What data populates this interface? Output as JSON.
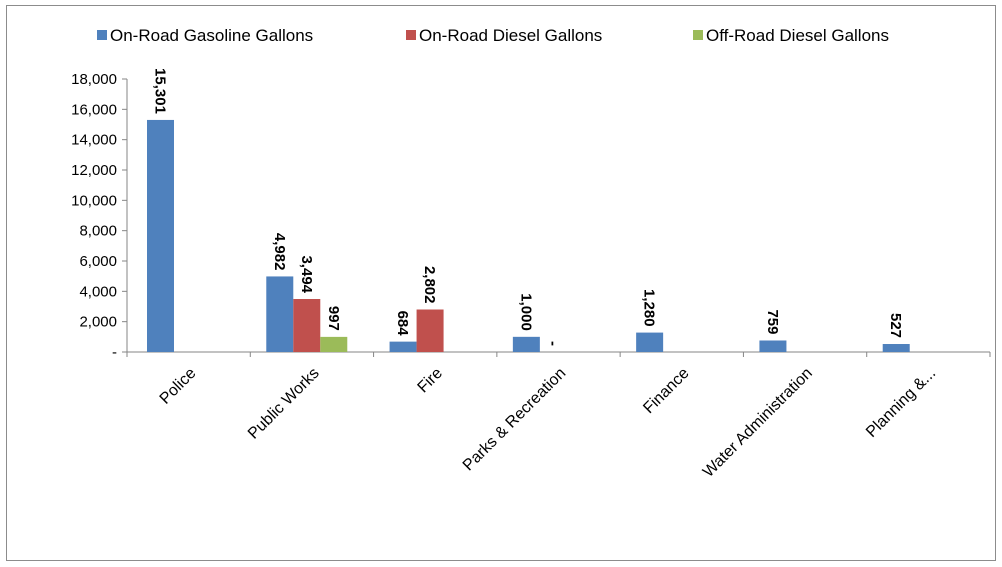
{
  "chart_data": {
    "type": "bar",
    "categories": [
      "Police",
      "Public Works",
      "Fire",
      "Parks & Recreation",
      "Finance",
      "Water Administration",
      "Planning &..."
    ],
    "series": [
      {
        "name": "On-Road Gasoline Gallons",
        "color": "#4f81bd",
        "values": [
          15301,
          4982,
          684,
          1000,
          1280,
          759,
          527
        ],
        "labels": [
          "15,301",
          "4,982",
          "684",
          "1,000",
          "1,280",
          "759",
          "527"
        ]
      },
      {
        "name": "On-Road Diesel Gallons",
        "color": "#c0504d",
        "values": [
          0,
          3494,
          2802,
          0,
          0,
          0,
          0
        ],
        "labels": [
          "",
          "3,494",
          "2,802",
          "-",
          "",
          "",
          ""
        ]
      },
      {
        "name": "Off-Road  Diesel Gallons",
        "color": "#9bbb59",
        "values": [
          0,
          997,
          0,
          0,
          0,
          0,
          0
        ],
        "labels": [
          "",
          "997",
          "",
          "",
          "",
          "",
          ""
        ]
      }
    ],
    "ylim": [
      0,
      18000
    ],
    "yticks": [
      0,
      2000,
      4000,
      6000,
      8000,
      10000,
      12000,
      14000,
      16000,
      18000
    ],
    "ytick_labels": [
      "-",
      "2,000",
      "4,000",
      "6,000",
      "8,000",
      "10,000",
      "12,000",
      "14,000",
      "16,000",
      "18,000"
    ],
    "grid": false,
    "legend_position": "top",
    "title": "",
    "xlabel": "",
    "ylabel": ""
  }
}
